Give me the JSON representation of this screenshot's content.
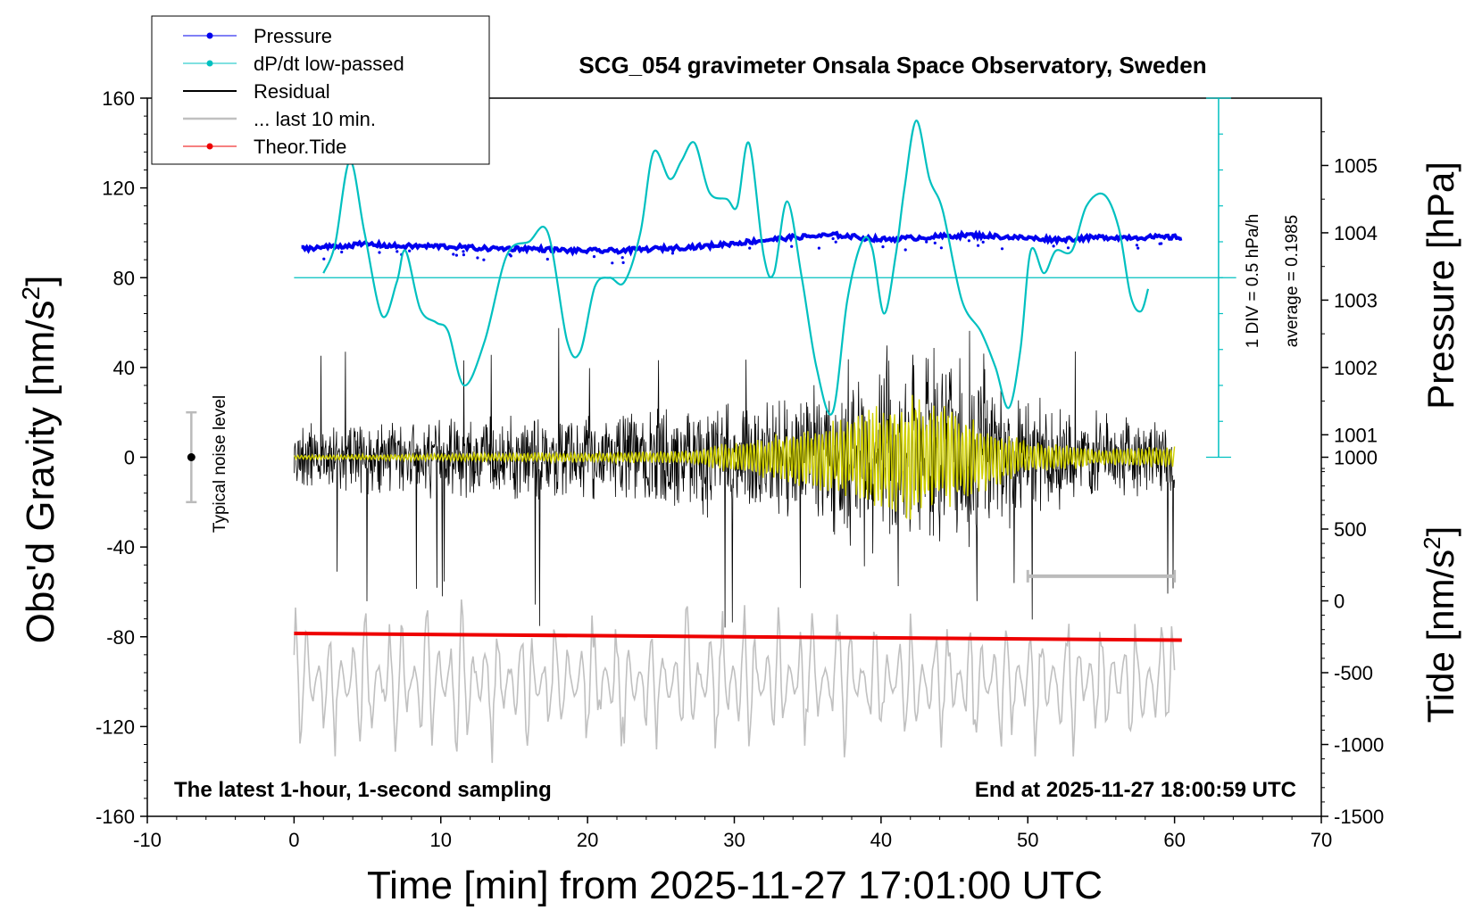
{
  "chart_data": {
    "type": "line",
    "title": "SCG_054 gravimeter Onsala Space Observatory, Sweden",
    "xlabel": "Time [min] from 2025-11-27 17:01:00 UTC",
    "ylabel_left": "Obs'd Gravity [nm/s",
    "ylabel_left_sup": "2",
    "ylabel_left_end": "]",
    "ylabel_right_top": "Pressure [hPa]",
    "ylabel_right_bottom": "Tide [nm/s",
    "ylabel_right_bottom_sup": "2",
    "ylabel_right_bottom_end": "]",
    "xlim": [
      -10,
      70
    ],
    "ylim": [
      -160,
      160
    ],
    "x_ticks": [
      "-10",
      "0",
      "10",
      "20",
      "30",
      "40",
      "50",
      "60",
      "70"
    ],
    "y_ticks": [
      "-160",
      "-120",
      "-80",
      "-40",
      "0",
      "40",
      "80",
      "120",
      "160"
    ],
    "pressure_ticks": [
      "1001",
      "1002",
      "1003",
      "1004",
      "1005"
    ],
    "tide_ticks": [
      "-1500",
      "-1000",
      "-500",
      "0",
      "500",
      "1000"
    ],
    "pressure_axis": {
      "range_hPa": [
        998,
        1006
      ],
      "gravity_equiv": [
        -80,
        160
      ]
    },
    "tide_axis": {
      "range": [
        -1500,
        1000
      ],
      "gravity_equiv": [
        -160,
        0
      ]
    },
    "legend": [
      {
        "label": "Pressure",
        "color": "#0000ee",
        "marker": "dot"
      },
      {
        "label": "dP/dt low-passed",
        "color": "#00c0c0",
        "marker": "dot"
      },
      {
        "label": "Residual",
        "color": "#000000",
        "marker": "none"
      },
      {
        "label": "... last 10 min.",
        "color": "#c0c0c0",
        "marker": "none"
      },
      {
        "label": "Theor.Tide",
        "color": "#ee0000",
        "marker": "dot"
      }
    ],
    "series": [
      {
        "name": "Pressure",
        "color": "#0000ee",
        "x": [
          0.5,
          3,
          5,
          7,
          10,
          13,
          16,
          19,
          22,
          25,
          28,
          31,
          34,
          37,
          40,
          43,
          46,
          49,
          52,
          55,
          58,
          60.5
        ],
        "values": [
          93,
          94,
          95,
          94,
          94,
          93,
          93,
          92,
          92,
          93,
          94,
          96,
          98,
          99,
          97,
          98,
          99,
          98,
          97,
          98,
          98,
          98
        ]
      },
      {
        "name": "dP/dt low-passed",
        "color": "#00c0c0",
        "x": [
          2,
          2.8,
          3.8,
          4.8,
          6,
          7,
          7.6,
          8.6,
          9.7,
          10.5,
          11.6,
          13,
          14.5,
          16,
          17.3,
          18.6,
          19.5,
          20.5,
          21.5,
          22.5,
          23.6,
          24.5,
          25.6,
          26.4,
          27.3,
          28.3,
          29.5,
          30.2,
          31,
          32,
          32.7,
          33.6,
          34.6,
          35.6,
          36.7,
          37.7,
          38.7,
          39.4,
          40.2,
          41,
          41.6,
          42.4,
          43.3,
          44.2,
          45.5,
          46.8,
          47.8,
          48.7,
          49.5,
          50.2,
          51.1,
          51.9,
          53,
          54,
          55.2,
          56.2,
          57,
          57.7,
          58.2
        ],
        "values": [
          82,
          95,
          132,
          100,
          63,
          78,
          92,
          66,
          60,
          56,
          32,
          52,
          90,
          96,
          100,
          52,
          47,
          76,
          80,
          78,
          100,
          136,
          124,
          132,
          140,
          118,
          115,
          112,
          140,
          90,
          82,
          114,
          80,
          40,
          20,
          70,
          96,
          93,
          64,
          90,
          120,
          150,
          124,
          110,
          70,
          56,
          40,
          22,
          48,
          92,
          82,
          92,
          92,
          112,
          117,
          102,
          72,
          65,
          75
        ]
      },
      {
        "name": "Residual",
        "color": "#000000",
        "x_range": [
          0,
          60
        ],
        "envelope": [
          [
            0,
            15
          ],
          [
            10,
            20
          ],
          [
            20,
            22
          ],
          [
            28,
            28
          ],
          [
            30,
            25
          ],
          [
            35,
            35
          ],
          [
            40,
            45
          ],
          [
            43,
            52
          ],
          [
            46,
            48
          ],
          [
            50,
            30
          ],
          [
            55,
            22
          ],
          [
            60,
            20
          ]
        ],
        "extremes": {
          "min": -76,
          "max": 65
        }
      },
      {
        "name": "Low-passed residual",
        "color": "#d0d000",
        "x_range": [
          0,
          60
        ],
        "envelope": [
          [
            0,
            1
          ],
          [
            27,
            3
          ],
          [
            29,
            6
          ],
          [
            34,
            12
          ],
          [
            38,
            20
          ],
          [
            42,
            30
          ],
          [
            44,
            25
          ],
          [
            46,
            20
          ],
          [
            50,
            8
          ],
          [
            55,
            4
          ],
          [
            60,
            5
          ]
        ]
      },
      {
        "name": "... last 10 min.",
        "color": "#c0c0c0",
        "x_range": [
          0,
          60
        ],
        "center": -100,
        "amplitude": 40
      },
      {
        "name": "Theor.Tide",
        "color": "#ee0000",
        "x": [
          0,
          60.5
        ],
        "values": [
          -78.5,
          -81.5
        ]
      }
    ],
    "annotations": {
      "noise_label": "Typical noise level",
      "noise_bar": {
        "x": -7,
        "center": 0,
        "half_range": 20
      },
      "last10_bar": {
        "x_start": 50,
        "x_end": 60,
        "y": -53
      },
      "scale_bar_label": "1 DIV = 0.5 hPa/h",
      "average_label": "average = 0.1985",
      "zero_line_y": 80,
      "scale_bar_x": 63,
      "bottom_left": "The latest 1-hour, 1-second sampling",
      "bottom_right": "End at 2025-11-27 18:00:59 UTC"
    }
  }
}
